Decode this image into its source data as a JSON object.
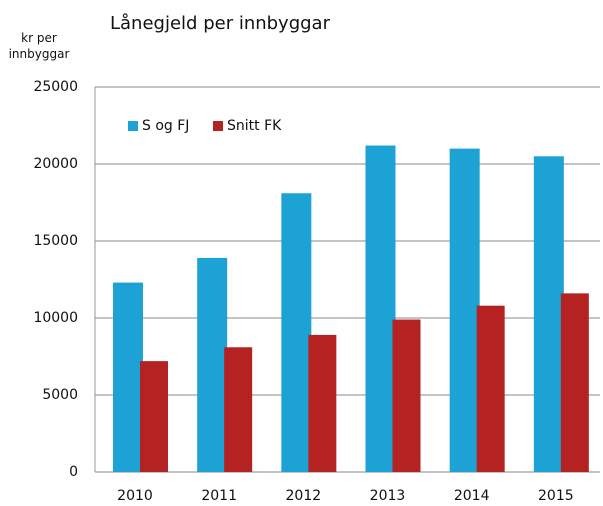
{
  "chart_data": {
    "type": "bar",
    "title": "Lånegjeld per innbyggar",
    "y_label": "kr per innbyggar",
    "categories": [
      "2010",
      "2011",
      "2012",
      "2013",
      "2014",
      "2015"
    ],
    "series": [
      {
        "name": "S og FJ",
        "color": "#1ca2d4",
        "values": [
          12300,
          13900,
          18100,
          21200,
          21000,
          20500
        ]
      },
      {
        "name": "Snitt FK",
        "color": "#b52222",
        "values": [
          7200,
          8100,
          8900,
          9900,
          10800,
          11600
        ]
      }
    ],
    "ylim": [
      0,
      25000
    ],
    "yticks": [
      0,
      5000,
      10000,
      15000,
      20000,
      25000
    ],
    "grid": true,
    "legend": "top-left"
  }
}
